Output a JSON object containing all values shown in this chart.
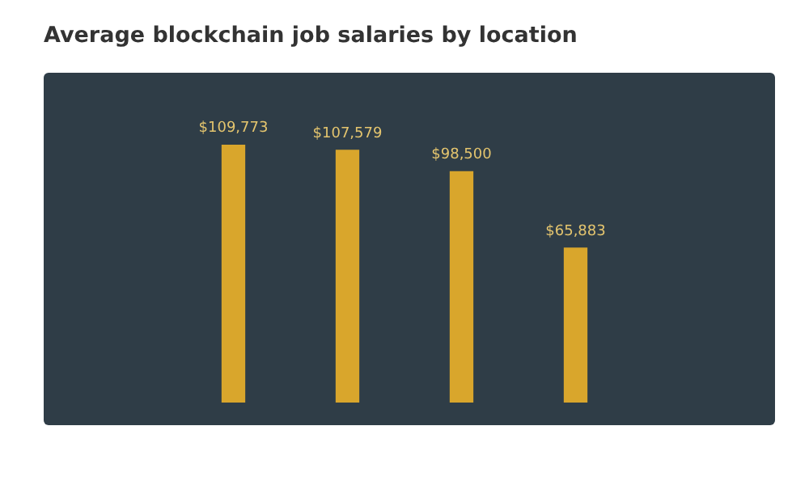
{
  "chart_data": {
    "type": "bar",
    "title": "Average blockchain job salaries by location",
    "categories": [
      null,
      null,
      null,
      null
    ],
    "values": [
      109773,
      107579,
      98500,
      65883
    ],
    "value_labels": [
      "$109,773",
      "$107,579",
      "$98,500",
      "$65,883"
    ],
    "color": "#d9a62c",
    "grid": false,
    "legend": false
  }
}
